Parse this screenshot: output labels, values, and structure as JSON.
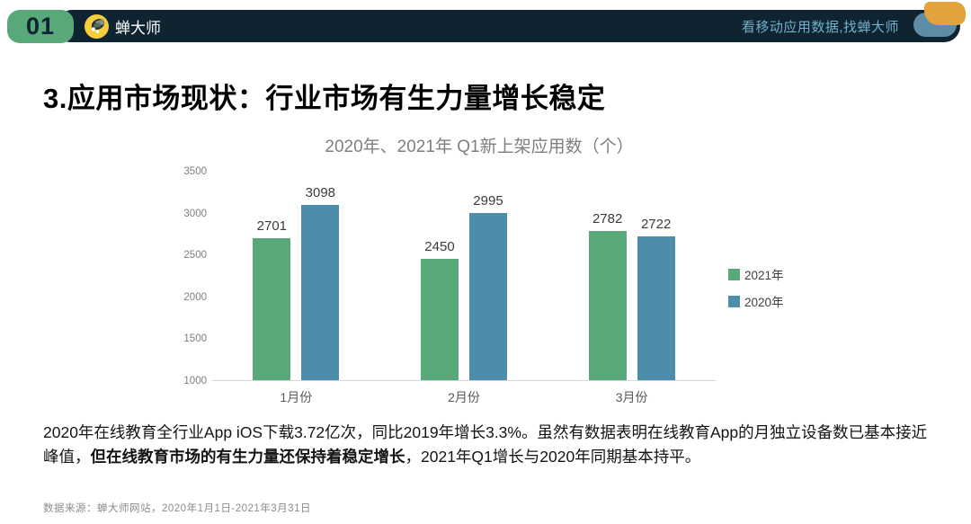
{
  "header": {
    "section_number": "01",
    "brand": "蝉大师",
    "tagline": "看移动应用数据,找蝉大师",
    "colors": {
      "navbar_bg": "#0F2331",
      "badge_green": "#58A87A",
      "logo_yellow": "#F5CE3E",
      "tagline_teal": "#6FB3C9",
      "corner_yellow": "#E2A33C",
      "corner_blue": "#5E8CA7"
    }
  },
  "title": "3.应用市场现状：行业市场有生力量增长稳定",
  "chart_data": {
    "type": "bar",
    "title": "2020年、2021年 Q1新上架应用数（个）",
    "categories": [
      "1月份",
      "2月份",
      "3月份"
    ],
    "series": [
      {
        "name": "2021年",
        "color": "#58A87A",
        "values": [
          2701,
          2450,
          2782
        ]
      },
      {
        "name": "2020年",
        "color": "#4B8DAB",
        "values": [
          3098,
          2995,
          2722
        ]
      }
    ],
    "ylim": [
      1000,
      3500
    ],
    "yticks": [
      3500,
      3000,
      2500,
      2000,
      1500,
      1000
    ],
    "xlabel": "",
    "ylabel": "",
    "grid": false,
    "legend_position": "right",
    "axis_color": "#D6D6D6"
  },
  "body": {
    "seg1": "2020年在线教育全行业App iOS下载3.72亿次，同比2019年增长3.3%。虽然有数据表明在线教育App的月独立设备数已基本接近峰值，",
    "seg2_bold": "但在线教育市场的有生力量还保持着稳定增长",
    "seg3": "，2021年Q1增长与2020年同期基本持平。"
  },
  "footer": {
    "source": "数据来源：蝉大师网站，2020年1月1日-2021年3月31日"
  }
}
